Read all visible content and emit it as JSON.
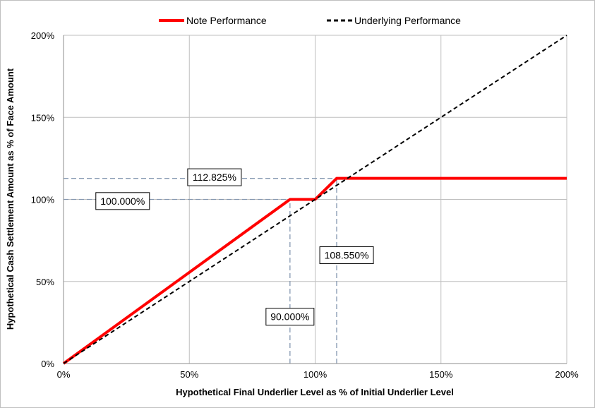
{
  "chart_data": {
    "type": "line",
    "xlabel": "Hypothetical Final Underlier Level as % of Initial Underlier Level",
    "ylabel": "Hypothetical Cash Settlement Amount as % of Face Amount",
    "xlim": [
      0,
      200
    ],
    "ylim": [
      0,
      200
    ],
    "x_ticks": [
      0,
      50,
      100,
      150,
      200
    ],
    "y_ticks": [
      0,
      50,
      100,
      150,
      200
    ],
    "x_tick_labels": [
      "0%",
      "50%",
      "100%",
      "150%",
      "200%"
    ],
    "y_tick_labels": [
      "0%",
      "50%",
      "100%",
      "150%",
      "200%"
    ],
    "grid": true,
    "legend_position": "top-center",
    "series": [
      {
        "name": "Note Performance",
        "color": "#ff0000",
        "style": "solid",
        "points": [
          [
            0,
            0
          ],
          [
            90,
            100
          ],
          [
            100,
            100
          ],
          [
            108.55,
            112.825
          ],
          [
            200,
            112.825
          ]
        ]
      },
      {
        "name": "Underlying Performance",
        "color": "#000000",
        "style": "dashed",
        "points": [
          [
            0,
            0
          ],
          [
            200,
            200
          ]
        ]
      }
    ],
    "reference_lines": [
      {
        "points": [
          [
            0,
            112.825
          ],
          [
            108.55,
            112.825
          ]
        ]
      },
      {
        "points": [
          [
            0,
            100
          ],
          [
            90,
            100
          ]
        ]
      },
      {
        "points": [
          [
            90,
            0
          ],
          [
            90,
            100
          ]
        ]
      },
      {
        "points": [
          [
            108.55,
            0
          ],
          [
            108.55,
            112.825
          ]
        ]
      }
    ],
    "annotations": [
      {
        "text": "112.825%",
        "x": 60,
        "y": 113.5
      },
      {
        "text": "100.000%",
        "x": 23.5,
        "y": 99
      },
      {
        "text": "108.550%",
        "x": 112.5,
        "y": 66
      },
      {
        "text": "90.000%",
        "x": 90,
        "y": 28.5
      }
    ]
  }
}
